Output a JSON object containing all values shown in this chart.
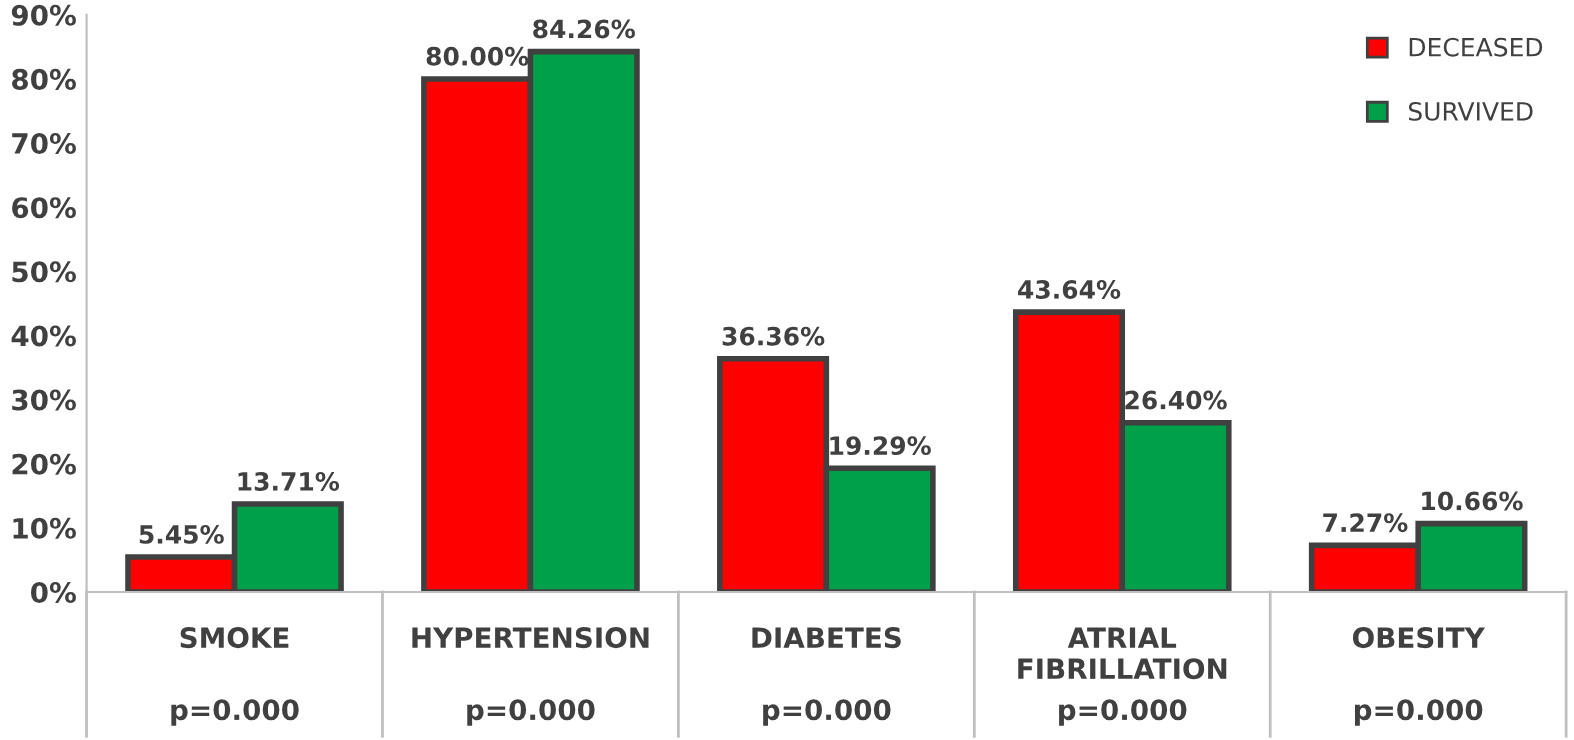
{
  "chart_data": {
    "type": "bar",
    "categories": [
      "SMOKE",
      "HYPERTENSION",
      "DIABETES",
      "ATRIAL\nFIBRILLATION",
      "OBESITY"
    ],
    "series": [
      {
        "name": "DECEASED",
        "color": "#ff0000",
        "values": [
          5.45,
          80.0,
          36.36,
          43.64,
          7.27
        ],
        "value_labels": [
          "5.45%",
          "80.00%",
          "36.36%",
          "43.64%",
          "7.27%"
        ]
      },
      {
        "name": "SURVIVED",
        "color": "#00a04a",
        "values": [
          13.71,
          84.26,
          19.29,
          26.4,
          10.66
        ],
        "value_labels": [
          "13.71%",
          "84.26%",
          "19.29%",
          "26.40%",
          "10.66%"
        ]
      }
    ],
    "annotations": [
      "p=0.000",
      "p=0.000",
      "p=0.000",
      "p=0.000",
      "p=0.000"
    ],
    "ylim": [
      0,
      90
    ],
    "yticks": [
      {
        "value": 0,
        "label": "0%"
      },
      {
        "value": 10,
        "label": "10%"
      },
      {
        "value": 20,
        "label": "20%"
      },
      {
        "value": 30,
        "label": "30%"
      },
      {
        "value": 40,
        "label": "40%"
      },
      {
        "value": 50,
        "label": "50%"
      },
      {
        "value": 60,
        "label": "60%"
      },
      {
        "value": 70,
        "label": "70%"
      },
      {
        "value": 80,
        "label": "80%"
      },
      {
        "value": 90,
        "label": "90%"
      }
    ],
    "legend": "top right",
    "grid": false
  }
}
